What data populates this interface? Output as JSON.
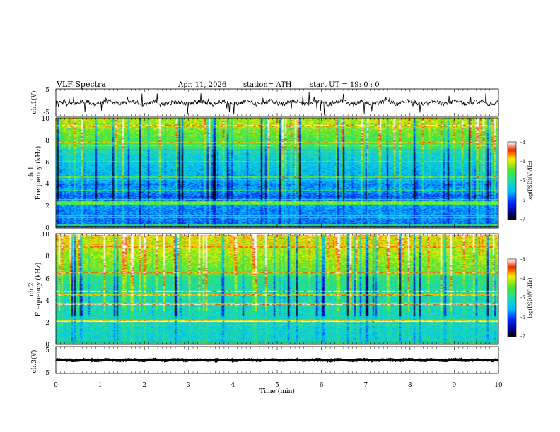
{
  "header": {
    "title": "VLF Spectra",
    "date": "Apr. 11, 2026",
    "station": "station= ATH",
    "start": "start UT =   19: 0  : 0"
  },
  "chart_data": [
    {
      "id": "ch1-waveform",
      "type": "line",
      "ylabel": "ch.1(V)",
      "ylim": [
        -5,
        5
      ],
      "yticks": [
        "5",
        "-5"
      ],
      "xlim": [
        0,
        10
      ],
      "description_level": "noisy waveform near 0 V with spikes"
    },
    {
      "id": "ch1-spectrogram",
      "type": "heatmap",
      "ylabel": "ch.1\nFrequency (kHz)",
      "ylabel_lines": [
        "ch.1",
        "Frequency (kHz)"
      ],
      "ylim": [
        0,
        10
      ],
      "yticks": [
        "10",
        "8",
        "6",
        "4",
        "2",
        "0"
      ],
      "xlim": [
        0,
        10
      ],
      "colorbar": {
        "label": "log(PSD)(V²/Hz)",
        "range": [
          -7,
          -3
        ],
        "ticks": [
          "-3",
          "-4",
          "-5",
          "-6",
          "-7"
        ]
      }
    },
    {
      "id": "ch2-spectrogram",
      "type": "heatmap",
      "ylabel_lines": [
        "ch.2",
        "Frequency (kHz)"
      ],
      "ylim": [
        0,
        10
      ],
      "yticks": [
        "10",
        "8",
        "6",
        "4",
        "2",
        "0"
      ],
      "xlim": [
        0,
        10
      ],
      "colorbar": {
        "label": "log(PSD)(V²/Hz)",
        "range": [
          -7,
          -3
        ],
        "ticks": [
          "-3",
          "-4",
          "-5",
          "-6",
          "-7"
        ]
      }
    },
    {
      "id": "ch3-waveform",
      "type": "line",
      "ylabel": "ch.3(V)",
      "ylim": [
        -5,
        5
      ],
      "yticks": [
        "5",
        "-5"
      ],
      "xlim": [
        0,
        10
      ]
    }
  ],
  "xaxis": {
    "label": "Time (min)",
    "ticks": [
      "0",
      "1",
      "2",
      "3",
      "4",
      "5",
      "6",
      "7",
      "8",
      "9",
      "10"
    ]
  },
  "colors": {
    "background": "#ffffff",
    "axis": "#000000"
  }
}
